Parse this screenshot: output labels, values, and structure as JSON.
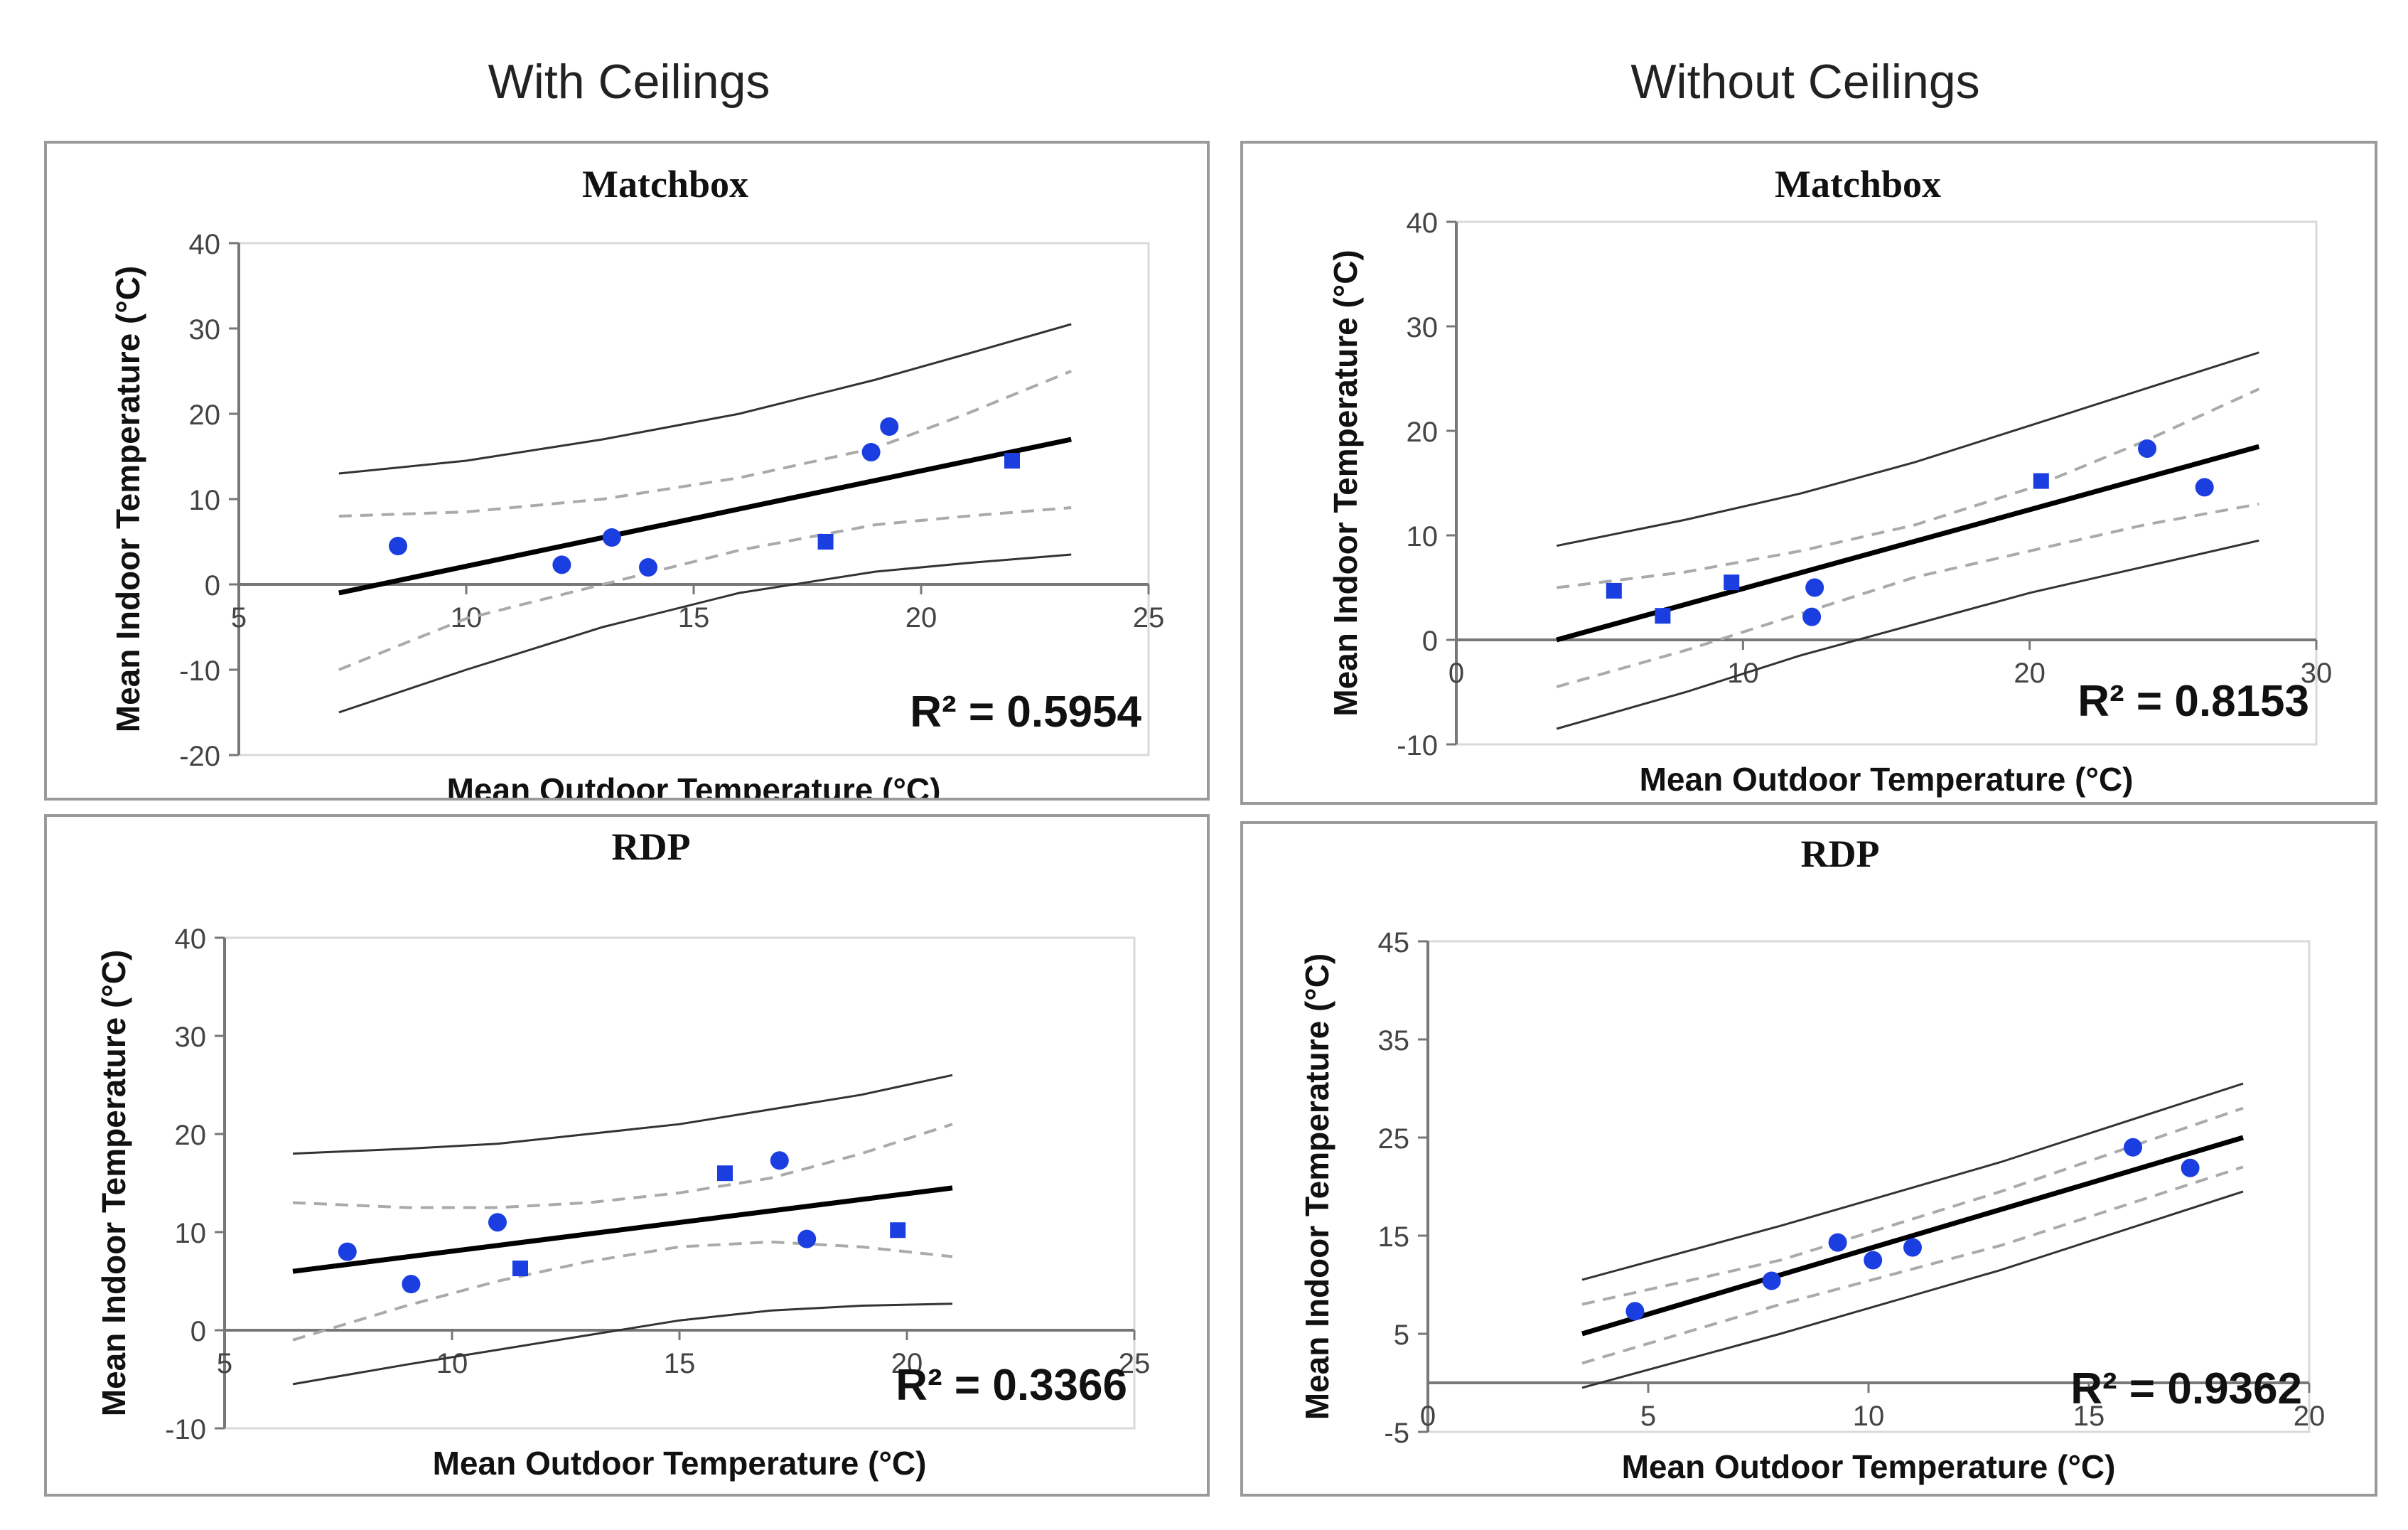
{
  "headers": {
    "left": "With Ceilings",
    "right": "Without Ceilings"
  },
  "chart_data": [
    {
      "type": "scatter",
      "title": "Matchbox",
      "column": "With Ceilings",
      "xlabel": "Mean Outdoor Temperature (°C)",
      "ylabel": "Mean Indoor Temperature (°C)",
      "xlim": [
        5,
        25
      ],
      "ylim": [
        -20,
        40
      ],
      "xticks": [
        5,
        10,
        15,
        20,
        25
      ],
      "yticks": [
        -20,
        -10,
        0,
        10,
        20,
        30,
        40
      ],
      "r2_label": "R² = 0.5954",
      "points": [
        {
          "x": 8.5,
          "y": 4.5,
          "marker": "circle"
        },
        {
          "x": 12.1,
          "y": 2.3,
          "marker": "circle"
        },
        {
          "x": 13.2,
          "y": 5.5,
          "marker": "circle"
        },
        {
          "x": 14.0,
          "y": 2.0,
          "marker": "circle"
        },
        {
          "x": 17.9,
          "y": 5.0,
          "marker": "square"
        },
        {
          "x": 18.9,
          "y": 15.5,
          "marker": "circle"
        },
        {
          "x": 19.3,
          "y": 18.5,
          "marker": "circle"
        },
        {
          "x": 22.0,
          "y": 14.5,
          "marker": "square"
        }
      ],
      "fit": {
        "x": [
          7.2,
          23.3
        ],
        "y": [
          -1.0,
          17.0
        ]
      },
      "ci_upper": {
        "x": [
          7.2,
          10,
          13,
          16,
          19,
          21,
          23.3
        ],
        "y": [
          8,
          8.5,
          10,
          12.5,
          16,
          20,
          25
        ]
      },
      "ci_lower": {
        "x": [
          7.2,
          10,
          13,
          16,
          19,
          21,
          23.3
        ],
        "y": [
          -10,
          -4,
          0,
          4,
          7,
          8,
          9
        ]
      },
      "pi_upper": {
        "x": [
          7.2,
          10,
          13,
          16,
          19,
          21,
          23.3
        ],
        "y": [
          13,
          14.5,
          17,
          20,
          24,
          27,
          30.5
        ]
      },
      "pi_lower": {
        "x": [
          7.2,
          10,
          13,
          16,
          19,
          21,
          23.3
        ],
        "y": [
          -15,
          -10,
          -5,
          -1,
          1.5,
          2.5,
          3.5
        ]
      }
    },
    {
      "type": "scatter",
      "title": "Matchbox",
      "column": "Without Ceilings",
      "xlabel": "Mean Outdoor Temperature (°C)",
      "ylabel": "Mean Indoor Temperature (°C)",
      "xlim": [
        0,
        30
      ],
      "ylim": [
        -10,
        40
      ],
      "xticks": [
        0,
        10,
        20,
        30
      ],
      "yticks": [
        -10,
        0,
        10,
        20,
        30,
        40
      ],
      "r2_label": "R² = 0.8153",
      "points": [
        {
          "x": 5.5,
          "y": 4.7,
          "marker": "square"
        },
        {
          "x": 7.2,
          "y": 2.3,
          "marker": "square"
        },
        {
          "x": 9.6,
          "y": 5.5,
          "marker": "square"
        },
        {
          "x": 12.5,
          "y": 5.0,
          "marker": "circle"
        },
        {
          "x": 12.4,
          "y": 2.2,
          "marker": "circle"
        },
        {
          "x": 20.4,
          "y": 15.2,
          "marker": "square"
        },
        {
          "x": 24.1,
          "y": 18.3,
          "marker": "circle"
        },
        {
          "x": 26.1,
          "y": 14.6,
          "marker": "circle"
        }
      ],
      "fit": {
        "x": [
          3.5,
          28
        ],
        "y": [
          0,
          18.5
        ]
      },
      "ci_upper": {
        "x": [
          3.5,
          8,
          12,
          16,
          20,
          24,
          28
        ],
        "y": [
          5,
          6.5,
          8.5,
          11,
          14.5,
          19,
          24
        ]
      },
      "ci_lower": {
        "x": [
          3.5,
          8,
          12,
          16,
          20,
          24,
          28
        ],
        "y": [
          -4.5,
          -1,
          2.5,
          6,
          8.5,
          11,
          13
        ]
      },
      "pi_upper": {
        "x": [
          3.5,
          8,
          12,
          16,
          20,
          24,
          28
        ],
        "y": [
          9,
          11.5,
          14,
          17,
          20.5,
          24,
          27.5
        ]
      },
      "pi_lower": {
        "x": [
          3.5,
          8,
          12,
          16,
          20,
          24,
          28
        ],
        "y": [
          -8.5,
          -5,
          -1.5,
          1.5,
          4.5,
          7,
          9.5
        ]
      }
    },
    {
      "type": "scatter",
      "title": "RDP",
      "column": "With Ceilings",
      "xlabel": "Mean Outdoor Temperature (°C)",
      "ylabel": "Mean Indoor Temperature (°C)",
      "xlim": [
        5,
        25
      ],
      "ylim": [
        -10,
        40
      ],
      "xticks": [
        5,
        10,
        15,
        20,
        25
      ],
      "yticks": [
        -10,
        0,
        10,
        20,
        30,
        40
      ],
      "r2_label": "R² = 0.3366",
      "points": [
        {
          "x": 7.7,
          "y": 8.0,
          "marker": "circle"
        },
        {
          "x": 9.1,
          "y": 4.7,
          "marker": "circle"
        },
        {
          "x": 11.0,
          "y": 11.0,
          "marker": "circle"
        },
        {
          "x": 11.5,
          "y": 6.3,
          "marker": "square"
        },
        {
          "x": 16.0,
          "y": 16.0,
          "marker": "square"
        },
        {
          "x": 17.2,
          "y": 17.3,
          "marker": "circle"
        },
        {
          "x": 17.8,
          "y": 9.3,
          "marker": "circle"
        },
        {
          "x": 19.8,
          "y": 10.2,
          "marker": "square"
        }
      ],
      "fit": {
        "x": [
          6.5,
          21
        ],
        "y": [
          6,
          14.5
        ]
      },
      "ci_upper": {
        "x": [
          6.5,
          9,
          11,
          13,
          15,
          17,
          19,
          21
        ],
        "y": [
          13,
          12.5,
          12.5,
          13,
          14,
          15.5,
          18,
          21
        ]
      },
      "ci_lower": {
        "x": [
          6.5,
          9,
          11,
          13,
          15,
          17,
          19,
          21
        ],
        "y": [
          -1,
          2.5,
          5,
          7,
          8.5,
          9,
          8.5,
          7.5
        ]
      },
      "pi_upper": {
        "x": [
          6.5,
          9,
          11,
          13,
          15,
          17,
          19,
          21
        ],
        "y": [
          18,
          18.5,
          19,
          20,
          21,
          22.5,
          24,
          26
        ]
      },
      "pi_lower": {
        "x": [
          6.5,
          9,
          11,
          13,
          15,
          17,
          19,
          21
        ],
        "y": [
          -5.5,
          -3.5,
          -2,
          -0.5,
          1,
          2,
          2.5,
          2.7
        ]
      }
    },
    {
      "type": "scatter",
      "title": "RDP",
      "column": "Without Ceilings",
      "xlabel": "Mean Outdoor Temperature (°C)",
      "ylabel": "Mean Indoor Temperature (°C)",
      "xlim": [
        0,
        20
      ],
      "ylim": [
        -5,
        45
      ],
      "xticks": [
        0,
        5,
        10,
        15,
        20
      ],
      "yticks": [
        -5,
        5,
        15,
        25,
        35,
        45
      ],
      "r2_label": "R² = 0.9362",
      "points": [
        {
          "x": 4.7,
          "y": 7.3,
          "marker": "circle"
        },
        {
          "x": 7.8,
          "y": 10.4,
          "marker": "circle"
        },
        {
          "x": 9.3,
          "y": 14.3,
          "marker": "circle"
        },
        {
          "x": 10.1,
          "y": 12.5,
          "marker": "circle"
        },
        {
          "x": 11.0,
          "y": 13.8,
          "marker": "circle"
        },
        {
          "x": 16.0,
          "y": 24.0,
          "marker": "circle"
        },
        {
          "x": 17.3,
          "y": 21.9,
          "marker": "circle"
        }
      ],
      "fit": {
        "x": [
          3.5,
          18.5
        ],
        "y": [
          5,
          25
        ]
      },
      "ci_upper": {
        "x": [
          3.5,
          8,
          13,
          18.5
        ],
        "y": [
          8,
          12.5,
          19.5,
          28
        ]
      },
      "ci_lower": {
        "x": [
          3.5,
          8,
          13,
          18.5
        ],
        "y": [
          2,
          8,
          14,
          22
        ]
      },
      "pi_upper": {
        "x": [
          3.5,
          8,
          13,
          18.5
        ],
        "y": [
          10.5,
          16,
          22.5,
          30.5
        ]
      },
      "pi_lower": {
        "x": [
          3.5,
          8,
          13,
          18.5
        ],
        "y": [
          -0.5,
          5,
          11.5,
          19.5
        ]
      }
    }
  ]
}
